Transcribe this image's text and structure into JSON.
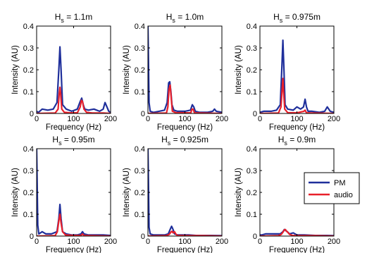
{
  "chart_data": [
    {
      "type": "line",
      "title": {
        "base": "H",
        "sub": "s",
        "rest": " = 1.1m"
      },
      "xlabel": "Frequency (Hz)",
      "ylabel": "Intensity (AU)",
      "xlim": [
        0,
        200
      ],
      "ylim": [
        0,
        0.4
      ],
      "xticks": [
        0,
        100,
        200
      ],
      "yticks": [
        0,
        0.1,
        0.2,
        0.3,
        0.4
      ],
      "grid": false,
      "series": [
        {
          "name": "PM",
          "color": "#1f2f9b",
          "x": [
            0,
            5,
            15,
            30,
            45,
            55,
            60,
            63,
            66,
            70,
            80,
            95,
            110,
            118,
            122,
            126,
            130,
            140,
            155,
            170,
            180,
            185,
            190,
            195,
            200
          ],
          "y": [
            0.01,
            0.005,
            0.02,
            0.015,
            0.02,
            0.05,
            0.2,
            0.305,
            0.2,
            0.04,
            0.02,
            0.01,
            0.02,
            0.055,
            0.07,
            0.04,
            0.02,
            0.015,
            0.02,
            0.01,
            0.02,
            0.05,
            0.03,
            0.01,
            0.005
          ]
        },
        {
          "name": "audio",
          "color": "#e8202a",
          "x": [
            0,
            50,
            58,
            61,
            63,
            65,
            68,
            75,
            90,
            110,
            118,
            121,
            124,
            128,
            135,
            150,
            180,
            200
          ],
          "y": [
            0,
            0.002,
            0.02,
            0.09,
            0.12,
            0.09,
            0.02,
            0.005,
            0.003,
            0.003,
            0.03,
            0.06,
            0.055,
            0.02,
            0.005,
            0.002,
            0.002,
            0
          ]
        }
      ]
    },
    {
      "type": "line",
      "title": {
        "base": "H",
        "sub": "s",
        "rest": " = 1.0m"
      },
      "xlabel": "Frequency (Hz)",
      "ylabel": "Intensity (AU)",
      "xlim": [
        0,
        200
      ],
      "ylim": [
        0,
        0.4
      ],
      "xticks": [
        0,
        100,
        200
      ],
      "yticks": [
        0,
        0.1,
        0.2,
        0.3,
        0.4
      ],
      "grid": false,
      "series": [
        {
          "name": "PM",
          "color": "#1f2f9b",
          "x": [
            0,
            1,
            3,
            6,
            15,
            30,
            45,
            52,
            56,
            59,
            62,
            65,
            70,
            80,
            100,
            115,
            120,
            124,
            128,
            140,
            160,
            175,
            180,
            185,
            200
          ],
          "y": [
            0.4,
            0.3,
            0.05,
            0.01,
            0.005,
            0.01,
            0.015,
            0.05,
            0.14,
            0.145,
            0.1,
            0.04,
            0.015,
            0.01,
            0.01,
            0.015,
            0.04,
            0.03,
            0.01,
            0.005,
            0.005,
            0.01,
            0.02,
            0.01,
            0.005
          ]
        },
        {
          "name": "audio",
          "color": "#e8202a",
          "x": [
            0,
            50,
            54,
            57,
            60,
            63,
            66,
            75,
            100,
            116,
            119,
            122,
            126,
            140,
            200
          ],
          "y": [
            0,
            0.002,
            0.03,
            0.11,
            0.13,
            0.07,
            0.01,
            0.004,
            0.003,
            0.003,
            0.02,
            0.02,
            0.003,
            0.002,
            0
          ]
        }
      ]
    },
    {
      "type": "line",
      "title": {
        "base": "H",
        "sub": "s",
        "rest": " = 0.975m"
      },
      "xlabel": "Frequency (Hz)",
      "ylabel": "Intensity (AU)",
      "xlim": [
        0,
        200
      ],
      "ylim": [
        0,
        0.4
      ],
      "xticks": [
        0,
        100,
        200
      ],
      "yticks": [
        0,
        0.1,
        0.2,
        0.3,
        0.4
      ],
      "grid": false,
      "series": [
        {
          "name": "PM",
          "color": "#1f2f9b",
          "x": [
            0,
            10,
            30,
            45,
            55,
            59,
            62,
            65,
            68,
            75,
            90,
            100,
            110,
            118,
            122,
            126,
            130,
            140,
            160,
            175,
            182,
            190,
            200
          ],
          "y": [
            0.005,
            0.01,
            0.01,
            0.015,
            0.04,
            0.2,
            0.335,
            0.2,
            0.04,
            0.02,
            0.015,
            0.03,
            0.02,
            0.03,
            0.065,
            0.03,
            0.01,
            0.01,
            0.005,
            0.01,
            0.03,
            0.01,
            0.005
          ]
        },
        {
          "name": "audio",
          "color": "#e8202a",
          "x": [
            0,
            50,
            57,
            60,
            62,
            64,
            67,
            75,
            100,
            119,
            122,
            126,
            140,
            200
          ],
          "y": [
            0,
            0.002,
            0.03,
            0.11,
            0.16,
            0.1,
            0.02,
            0.004,
            0.003,
            0.01,
            0.015,
            0.003,
            0.002,
            0
          ]
        }
      ]
    },
    {
      "type": "line",
      "title": {
        "base": "H",
        "sub": "s",
        "rest": " = 0.95m"
      },
      "xlabel": "Frequency (Hz)",
      "ylabel": "Intensity (AU)",
      "xlim": [
        0,
        200
      ],
      "ylim": [
        0,
        0.4
      ],
      "xticks": [
        0,
        100,
        200
      ],
      "yticks": [
        0,
        0.1,
        0.2,
        0.3,
        0.4
      ],
      "grid": false,
      "series": [
        {
          "name": "PM",
          "color": "#1f2f9b",
          "x": [
            0,
            1,
            3,
            6,
            15,
            25,
            40,
            55,
            60,
            63,
            66,
            70,
            80,
            95,
            110,
            120,
            124,
            128,
            140,
            160,
            180,
            200
          ],
          "y": [
            0.4,
            0.3,
            0.05,
            0.01,
            0.02,
            0.01,
            0.01,
            0.02,
            0.08,
            0.145,
            0.08,
            0.02,
            0.01,
            0.005,
            0.005,
            0.01,
            0.02,
            0.01,
            0.005,
            0.005,
            0.005,
            0.003
          ]
        },
        {
          "name": "audio",
          "color": "#e8202a",
          "x": [
            0,
            50,
            56,
            60,
            63,
            66,
            70,
            78,
            100,
            120,
            124,
            128,
            150,
            200
          ],
          "y": [
            0,
            0.002,
            0.02,
            0.07,
            0.1,
            0.06,
            0.02,
            0.005,
            0.003,
            0.003,
            0.01,
            0.003,
            0.002,
            0
          ]
        }
      ]
    },
    {
      "type": "line",
      "title": {
        "base": "H",
        "sub": "s",
        "rest": " = 0.925m"
      },
      "xlabel": "Frequency (Hz)",
      "ylabel": "Intensity (AU)",
      "xlim": [
        0,
        200
      ],
      "ylim": [
        0,
        0.4
      ],
      "xticks": [
        0,
        100,
        200
      ],
      "yticks": [
        0,
        0.1,
        0.2,
        0.3,
        0.4
      ],
      "grid": false,
      "series": [
        {
          "name": "PM",
          "color": "#1f2f9b",
          "x": [
            0,
            1,
            3,
            6,
            15,
            30,
            45,
            55,
            60,
            64,
            68,
            72,
            80,
            95,
            110,
            130,
            150,
            170,
            200
          ],
          "y": [
            0.4,
            0.3,
            0.04,
            0.01,
            0.005,
            0.005,
            0.005,
            0.01,
            0.03,
            0.045,
            0.03,
            0.01,
            0.005,
            0.005,
            0.005,
            0.003,
            0.003,
            0.003,
            0.002
          ]
        },
        {
          "name": "audio",
          "color": "#e8202a",
          "x": [
            0,
            50,
            58,
            62,
            65,
            68,
            72,
            76,
            80,
            100,
            150,
            200
          ],
          "y": [
            0,
            0.002,
            0.008,
            0.018,
            0.022,
            0.015,
            0.02,
            0.008,
            0.003,
            0.002,
            0.002,
            0
          ]
        }
      ]
    },
    {
      "type": "line",
      "title": {
        "base": "H",
        "sub": "s",
        "rest": " = 0.9m"
      },
      "xlabel": "Frequency (Hz)",
      "ylabel": "Intensity (AU)",
      "xlim": [
        0,
        200
      ],
      "ylim": [
        0,
        0.4
      ],
      "xticks": [
        0,
        100,
        200
      ],
      "yticks": [
        0,
        0.1,
        0.2,
        0.3,
        0.4
      ],
      "grid": false,
      "legend": {
        "position": "top-right",
        "entries": [
          "PM",
          "audio"
        ]
      },
      "series": [
        {
          "name": "PM",
          "color": "#1f2f9b",
          "x": [
            0,
            5,
            15,
            30,
            45,
            55,
            62,
            66,
            70,
            74,
            80,
            90,
            100,
            120,
            150,
            180,
            200
          ],
          "y": [
            0.005,
            0.005,
            0.01,
            0.01,
            0.01,
            0.01,
            0.02,
            0.03,
            0.025,
            0.02,
            0.01,
            0.015,
            0.005,
            0.005,
            0.003,
            0.003,
            0.002
          ]
        },
        {
          "name": "audio",
          "color": "#e8202a",
          "x": [
            0,
            50,
            58,
            63,
            66,
            69,
            72,
            75,
            80,
            88,
            100,
            150,
            200
          ],
          "y": [
            0,
            0.002,
            0.008,
            0.02,
            0.028,
            0.03,
            0.022,
            0.018,
            0.008,
            0.003,
            0.002,
            0.002,
            0
          ]
        }
      ]
    }
  ]
}
